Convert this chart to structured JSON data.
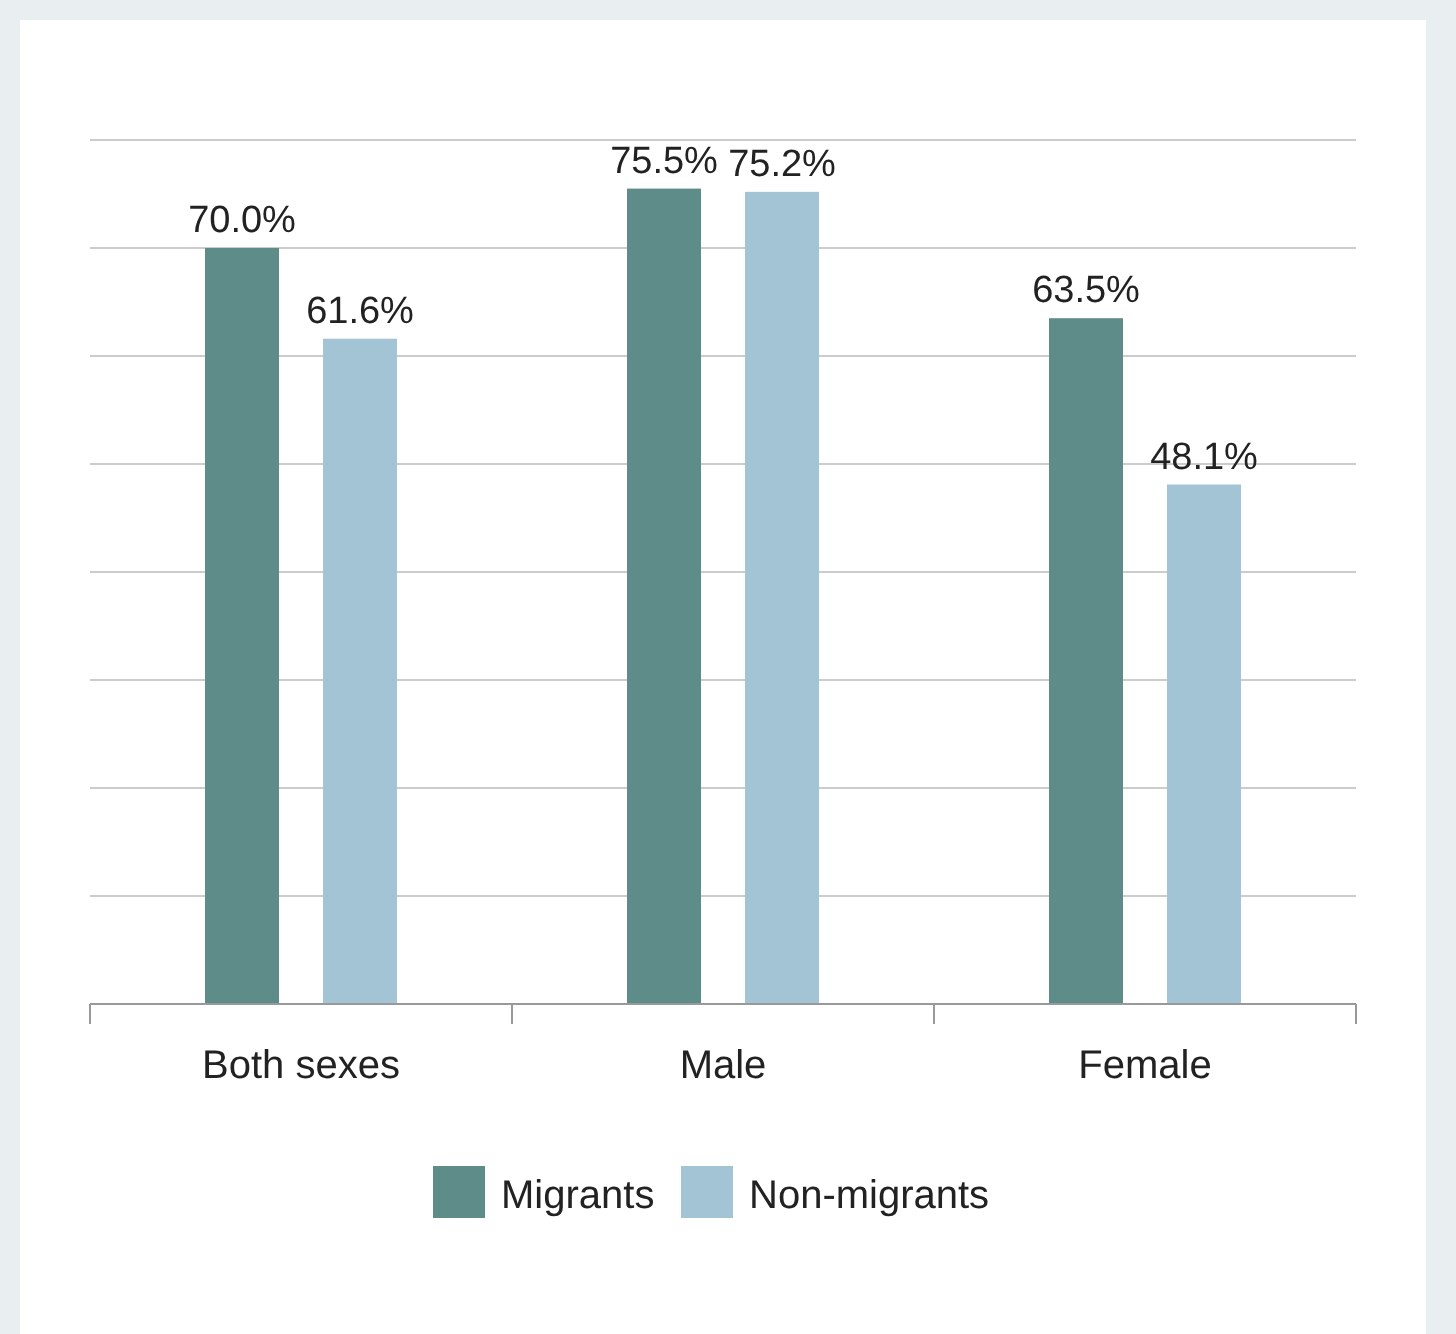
{
  "chart_data": {
    "type": "bar",
    "categories": [
      "Both sexes",
      "Male",
      "Female"
    ],
    "series": [
      {
        "name": "Migrants",
        "color": "#5e8c88",
        "values": [
          70.0,
          75.5,
          63.5
        ],
        "value_labels": [
          "70.0%",
          "75.5%",
          "63.5%"
        ]
      },
      {
        "name": "Non-migrants",
        "color": "#a3c4d4",
        "values": [
          61.6,
          75.2,
          48.1
        ],
        "value_labels": [
          "61.6%",
          "75.2%",
          "48.1%"
        ]
      }
    ],
    "ylim": [
      0,
      80
    ],
    "yticks": [
      {
        "value": 0,
        "label": null
      },
      {
        "value": 10,
        "label": null
      },
      {
        "value": 20,
        "label": null
      },
      {
        "value": 30,
        "label": null
      },
      {
        "value": 40,
        "label": null
      },
      {
        "value": 50,
        "label": null
      },
      {
        "value": 60,
        "label": null
      },
      {
        "value": 70,
        "label": null
      },
      {
        "value": 80,
        "label": null
      }
    ],
    "tick_labels": "x",
    "grid": "y",
    "legend": "bottom"
  }
}
